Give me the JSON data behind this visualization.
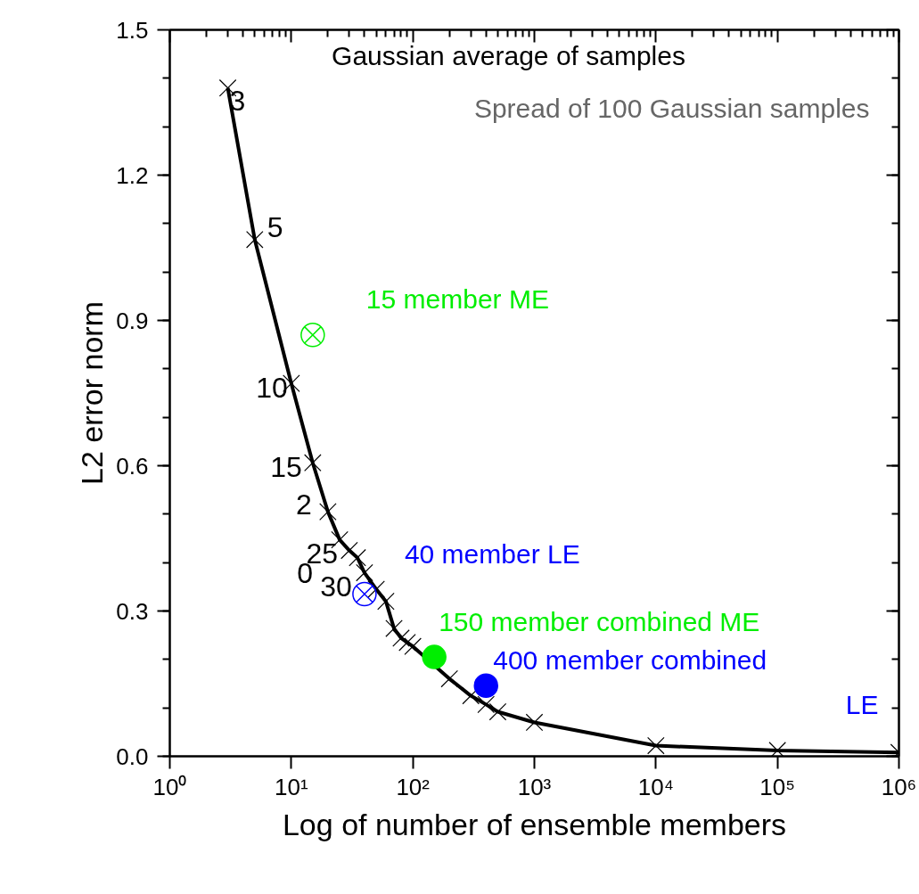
{
  "chart_data": {
    "type": "line",
    "xlabel": "Log of number of ensemble members",
    "ylabel": "L2 error norm",
    "log": "x",
    "xlim": [
      1,
      1000000
    ],
    "ylim": [
      0,
      1.5
    ],
    "xticks": [
      {
        "value": 1,
        "label": "10⁰"
      },
      {
        "value": 10,
        "label": "10¹"
      },
      {
        "value": 100,
        "label": "10²"
      },
      {
        "value": 1000,
        "label": "10³"
      },
      {
        "value": 10000,
        "label": "10⁴"
      },
      {
        "value": 100000,
        "label": "10⁵"
      },
      {
        "value": 1000000,
        "label": "10⁶"
      }
    ],
    "yticks": [
      {
        "value": 0,
        "label": "0.0"
      },
      {
        "value": 0.3,
        "label": "0.3"
      },
      {
        "value": 0.6,
        "label": "0.6"
      },
      {
        "value": 0.9,
        "label": "0.9"
      },
      {
        "value": 1.2,
        "label": "1.2"
      },
      {
        "value": 1.5,
        "label": "1.5"
      }
    ],
    "grid": false,
    "series": [
      {
        "name": "Gaussian average of samples",
        "color": "#000000",
        "marker": "cross",
        "x": [
          3,
          5,
          10,
          15,
          20,
          25,
          30,
          35,
          40,
          50,
          60,
          70,
          80,
          90,
          100,
          200,
          300,
          400,
          500,
          1000,
          10000,
          100000,
          1000000
        ],
        "values": [
          1.38,
          1.067,
          0.77,
          0.606,
          0.505,
          0.447,
          0.425,
          0.41,
          0.379,
          0.345,
          0.32,
          0.264,
          0.244,
          0.235,
          0.227,
          0.16,
          0.125,
          0.107,
          0.092,
          0.07,
          0.022,
          0.012,
          0.008
        ]
      },
      {
        "name": "15 member ME",
        "type": "scatter",
        "color": "#00ee00",
        "marker": "circle_x",
        "x": [
          15
        ],
        "values": [
          0.87
        ]
      },
      {
        "name": "40 member LE",
        "type": "scatter",
        "color": "#0000ff",
        "marker": "circle_x",
        "x": [
          40
        ],
        "values": [
          0.335
        ]
      },
      {
        "name": "150 member combined ME",
        "type": "scatter",
        "color": "#00ee00",
        "marker": "circle",
        "x": [
          150
        ],
        "values": [
          0.205
        ]
      },
      {
        "name": "400 member combined LE",
        "type": "scatter",
        "color": "#0000ff",
        "marker": "circle",
        "x": [
          400
        ],
        "values": [
          0.146
        ]
      }
    ],
    "annotations": [
      "Spread of 100 Gaussian samples",
      {
        "text": "3",
        "x": 3,
        "y": 1.38
      },
      {
        "text": "5",
        "x": 5,
        "y": 1.067
      },
      {
        "text": "10",
        "x": 10,
        "y": 0.77
      },
      {
        "text": "15",
        "x": 15,
        "y": 0.606
      },
      {
        "text": "2",
        "x": 20,
        "y": 0.505
      },
      {
        "text": "0",
        "x": 25,
        "y": 0.447
      },
      {
        "text": "25",
        "x": 25,
        "y": 0.447
      },
      {
        "text": "30",
        "x": 30,
        "y": 0.425
      }
    ]
  }
}
